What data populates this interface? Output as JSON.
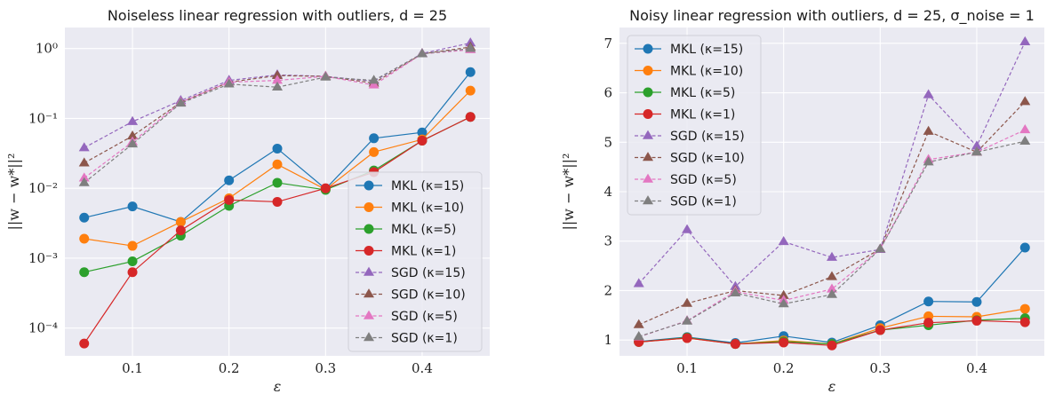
{
  "chart_data": [
    {
      "type": "line",
      "title": "Noiseless linear regression with outliers, d = 25",
      "xlabel": "ε",
      "ylabel": "||w − w*||²",
      "yscale": "log",
      "xlim": [
        0.03,
        0.47
      ],
      "ylim": [
        4e-05,
        2.0
      ],
      "xticks": [
        0.1,
        0.2,
        0.3,
        0.4
      ],
      "xtick_labels": [
        "0.1",
        "0.2",
        "0.3",
        "0.4"
      ],
      "yticks": [
        0.0001,
        0.001,
        0.01,
        0.1,
        1
      ],
      "ytick_labels": [
        "10⁻⁴",
        "10⁻³",
        "10⁻²",
        "10⁻¹",
        "10⁰"
      ],
      "grid": true,
      "legend_position": "lower-right",
      "x": [
        0.05,
        0.1,
        0.15,
        0.2,
        0.25,
        0.3,
        0.35,
        0.4,
        0.45
      ],
      "series": [
        {
          "name": "MKL (κ=15)",
          "color": "#1f77b4",
          "marker": "circle",
          "dashed": false,
          "values": [
            0.0038,
            0.0055,
            0.0033,
            0.013,
            0.037,
            0.0098,
            0.052,
            0.063,
            0.46
          ]
        },
        {
          "name": "MKL (κ=10)",
          "color": "#ff7f0e",
          "marker": "circle",
          "dashed": false,
          "values": [
            0.0019,
            0.0015,
            0.0033,
            0.0072,
            0.022,
            0.0096,
            0.033,
            0.05,
            0.25
          ]
        },
        {
          "name": "MKL (κ=5)",
          "color": "#2ca02c",
          "marker": "circle",
          "dashed": false,
          "values": [
            0.00063,
            0.0009,
            0.0021,
            0.0056,
            0.012,
            0.0095,
            0.018,
            0.048,
            0.105
          ]
        },
        {
          "name": "MKL (κ=1)",
          "color": "#d62728",
          "marker": "circle",
          "dashed": false,
          "values": [
            6e-05,
            0.00063,
            0.0025,
            0.0068,
            0.0064,
            0.01,
            0.017,
            0.048,
            0.105
          ]
        },
        {
          "name": "SGD (κ=15)",
          "color": "#9467bd",
          "marker": "triangle",
          "dashed": true,
          "values": [
            0.038,
            0.09,
            0.18,
            0.35,
            0.42,
            0.4,
            0.34,
            0.85,
            1.2
          ]
        },
        {
          "name": "SGD (κ=10)",
          "color": "#8c564b",
          "marker": "triangle",
          "dashed": true,
          "values": [
            0.023,
            0.056,
            0.17,
            0.33,
            0.41,
            0.4,
            0.32,
            0.84,
            1.05
          ]
        },
        {
          "name": "SGD (κ=5)",
          "color": "#e377c2",
          "marker": "triangle",
          "dashed": true,
          "values": [
            0.014,
            0.046,
            0.17,
            0.33,
            0.35,
            0.4,
            0.3,
            0.84,
            0.96
          ]
        },
        {
          "name": "SGD (κ=1)",
          "color": "#7f7f7f",
          "marker": "triangle",
          "dashed": true,
          "values": [
            0.012,
            0.043,
            0.165,
            0.31,
            0.28,
            0.39,
            0.35,
            0.84,
            1.0
          ]
        }
      ]
    },
    {
      "type": "line",
      "title": "Noisy linear regression with outliers, d = 25, σ_noise = 1",
      "xlabel": "ε",
      "ylabel": "||w − w*||²",
      "yscale": "linear",
      "xlim": [
        0.03,
        0.47
      ],
      "ylim": [
        0.68,
        7.32
      ],
      "xticks": [
        0.1,
        0.2,
        0.3,
        0.4
      ],
      "xtick_labels": [
        "0.1",
        "0.2",
        "0.3",
        "0.4"
      ],
      "yticks": [
        1,
        2,
        3,
        4,
        5,
        6,
        7
      ],
      "ytick_labels": [
        "1",
        "2",
        "3",
        "4",
        "5",
        "6",
        "7"
      ],
      "grid": true,
      "legend_position": "upper-left",
      "x": [
        0.05,
        0.1,
        0.15,
        0.2,
        0.25,
        0.3,
        0.35,
        0.4,
        0.45
      ],
      "series": [
        {
          "name": "MKL (κ=15)",
          "color": "#1f77b4",
          "marker": "circle",
          "dashed": false,
          "values": [
            0.97,
            1.06,
            0.94,
            1.08,
            0.95,
            1.3,
            1.78,
            1.77,
            2.87
          ]
        },
        {
          "name": "MKL (κ=10)",
          "color": "#ff7f0e",
          "marker": "circle",
          "dashed": false,
          "values": [
            0.96,
            1.04,
            0.92,
            0.99,
            0.92,
            1.24,
            1.48,
            1.47,
            1.63
          ]
        },
        {
          "name": "MKL (κ=5)",
          "color": "#2ca02c",
          "marker": "circle",
          "dashed": false,
          "values": [
            0.96,
            1.05,
            0.92,
            0.97,
            0.92,
            1.2,
            1.3,
            1.4,
            1.44
          ]
        },
        {
          "name": "MKL (κ=1)",
          "color": "#d62728",
          "marker": "circle",
          "dashed": false,
          "values": [
            0.96,
            1.04,
            0.92,
            0.95,
            0.89,
            1.2,
            1.35,
            1.39,
            1.36
          ]
        },
        {
          "name": "SGD (κ=15)",
          "color": "#9467bd",
          "marker": "triangle",
          "dashed": true,
          "values": [
            2.14,
            3.23,
            2.08,
            2.99,
            2.67,
            2.83,
            5.96,
            4.92,
            7.03
          ]
        },
        {
          "name": "SGD (κ=10)",
          "color": "#8c564b",
          "marker": "triangle",
          "dashed": true,
          "values": [
            1.31,
            1.74,
            2.0,
            1.9,
            2.28,
            2.84,
            5.22,
            4.8,
            5.82
          ]
        },
        {
          "name": "SGD (κ=5)",
          "color": "#e377c2",
          "marker": "triangle",
          "dashed": true,
          "values": [
            1.06,
            1.39,
            1.98,
            1.8,
            2.03,
            2.84,
            4.65,
            4.8,
            5.25
          ]
        },
        {
          "name": "SGD (κ=1)",
          "color": "#7f7f7f",
          "marker": "triangle",
          "dashed": true,
          "values": [
            1.07,
            1.38,
            1.95,
            1.73,
            1.92,
            2.84,
            4.6,
            4.8,
            5.02
          ]
        }
      ]
    }
  ]
}
